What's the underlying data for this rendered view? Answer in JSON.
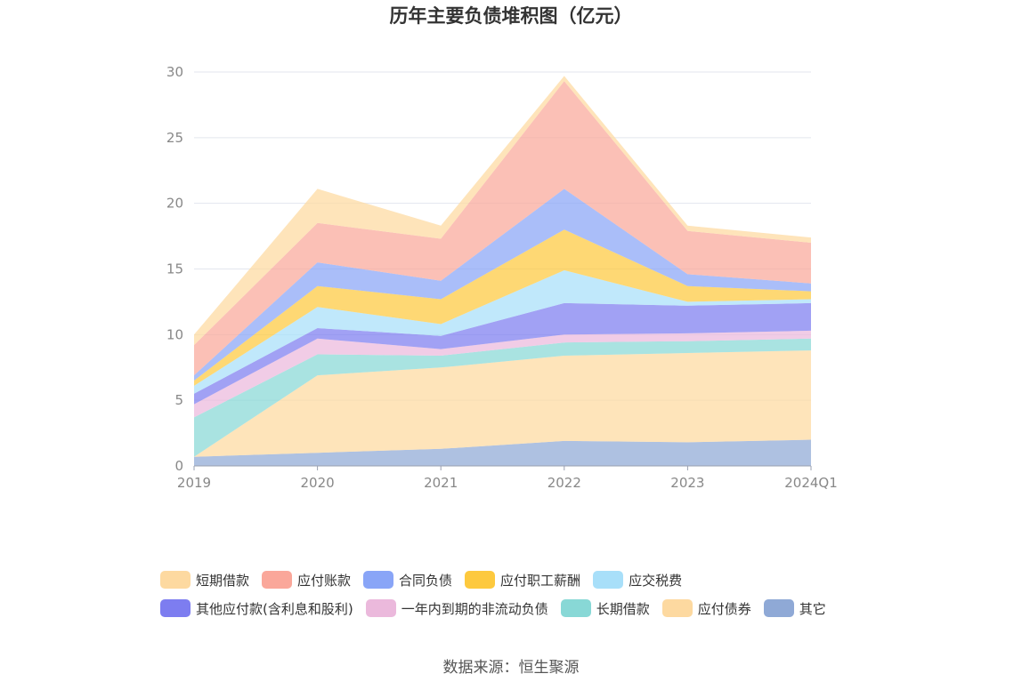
{
  "title": "历年主要负债堆积图（亿元）",
  "source": "数据来源：恒生聚源",
  "chart_data": {
    "type": "area",
    "stacked": true,
    "x": [
      "2019",
      "2020",
      "2021",
      "2022",
      "2023",
      "2024Q1"
    ],
    "ylim": [
      0,
      30
    ],
    "yticks": [
      0,
      5,
      10,
      15,
      20,
      25,
      30
    ],
    "grid": true,
    "legend_position": "bottom",
    "series": [
      {
        "name": "其它",
        "color": "#8fa9d6",
        "values": [
          0.7,
          1.0,
          1.3,
          1.9,
          1.8,
          2.0
        ]
      },
      {
        "name": "应付债券",
        "color": "#fdd9a0",
        "values": [
          0.0,
          5.9,
          6.2,
          6.5,
          6.8,
          6.8
        ]
      },
      {
        "name": "长期借款",
        "color": "#88d8d6",
        "values": [
          3.0,
          1.6,
          0.9,
          1.0,
          0.9,
          0.9
        ]
      },
      {
        "name": "一年内到期的非流动负债",
        "color": "#ebb9dc",
        "values": [
          1.0,
          1.2,
          0.5,
          0.6,
          0.6,
          0.6
        ]
      },
      {
        "name": "其他应付款(含利息和股利)",
        "color": "#7d7df0",
        "values": [
          0.8,
          0.8,
          1.0,
          2.4,
          2.1,
          2.1
        ]
      },
      {
        "name": "应交税费",
        "color": "#a8dff9",
        "values": [
          0.6,
          1.6,
          0.9,
          2.5,
          0.3,
          0.3
        ]
      },
      {
        "name": "应付职工薪酬",
        "color": "#fdc93e",
        "values": [
          0.4,
          1.6,
          1.9,
          3.1,
          1.2,
          0.6
        ]
      },
      {
        "name": "合同负债",
        "color": "#89a5f7",
        "values": [
          0.4,
          1.8,
          1.4,
          3.1,
          0.9,
          0.6
        ]
      },
      {
        "name": "应付账款",
        "color": "#faa79a",
        "values": [
          2.3,
          3.0,
          3.2,
          8.2,
          3.3,
          3.1
        ]
      },
      {
        "name": "短期借款",
        "color": "#fdd9a0",
        "values": [
          0.8,
          2.6,
          1.0,
          0.4,
          0.4,
          0.4
        ]
      }
    ]
  },
  "legend_rows": [
    [
      "短期借款",
      "应付账款",
      "合同负债",
      "应付职工薪酬",
      "应交税费"
    ],
    [
      "其他应付款(含利息和股利)",
      "一年内到期的非流动负债",
      "长期借款",
      "应付债券",
      "其它"
    ]
  ]
}
